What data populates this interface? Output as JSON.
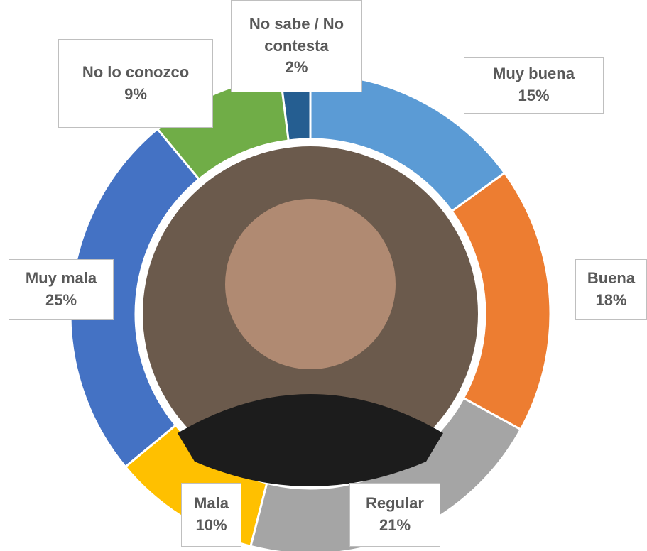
{
  "chart_data": {
    "type": "donut",
    "categories": [
      "Muy buena",
      "Buena",
      "Regular",
      "Mala",
      "Muy mala",
      "No lo conozco",
      "No sabe / No contesta"
    ],
    "values": [
      15,
      18,
      21,
      10,
      25,
      9,
      2
    ],
    "value_labels": [
      "15%",
      "18%",
      "21%",
      "10%",
      "25%",
      "9%",
      "2%"
    ],
    "colors": [
      "#5b9bd5",
      "#ed7d31",
      "#a5a5a5",
      "#ffc000",
      "#4472c4",
      "#70ad47",
      "#255e91"
    ]
  }
}
